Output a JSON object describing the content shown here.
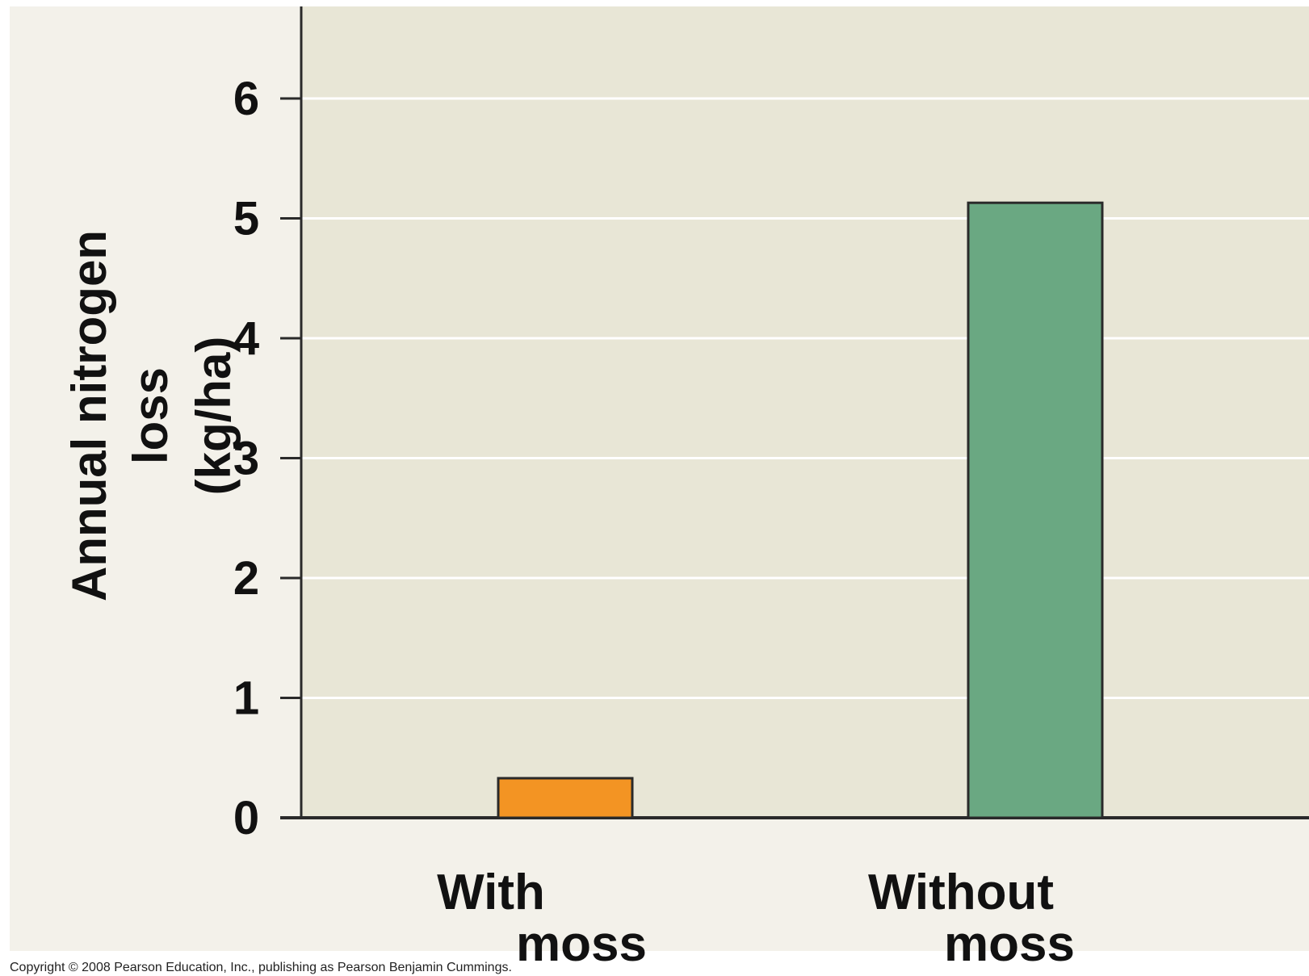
{
  "chart_data": {
    "type": "bar",
    "categories": [
      [
        "With",
        "moss"
      ],
      [
        "Without",
        "moss"
      ]
    ],
    "values": [
      0.33,
      5.13
    ],
    "ylabel": [
      "Annual nitrogen",
      "loss",
      "(kg/ha)"
    ],
    "xlabel": "",
    "title": "",
    "ylim": [
      0,
      6.8
    ],
    "yticks": [
      0,
      1,
      2,
      3,
      4,
      5,
      6
    ],
    "grid": true,
    "legend": "none",
    "bar_colors": [
      "#f39423",
      "#6aa882"
    ]
  },
  "colors": {
    "outer_background": "#f3f1ea",
    "plot_background": "#e8e6d6",
    "gridline": "#ffffff",
    "axis": "#2a2a2a",
    "bar_edge": "#2a2a2a"
  },
  "footer": {
    "copyright": "Copyright © 2008 Pearson Education, Inc., publishing as Pearson Benjamin Cummings."
  }
}
